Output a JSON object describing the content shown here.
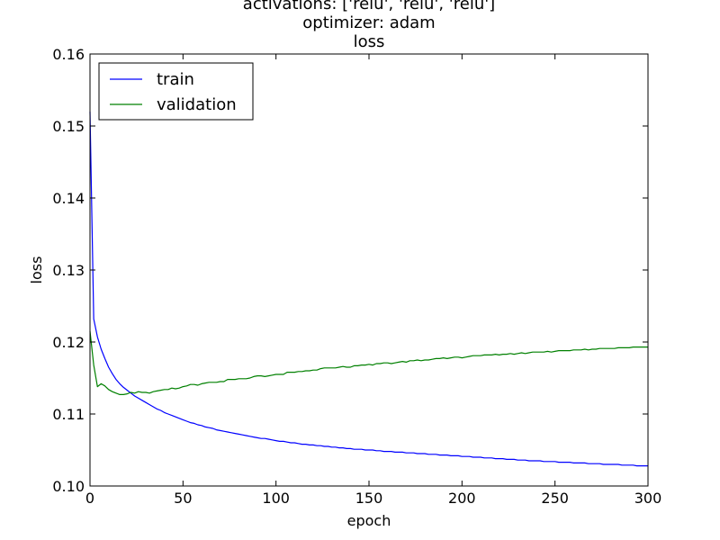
{
  "chart_data": {
    "type": "line",
    "title_lines": [
      "activations: ['relu', 'relu', 'relu']",
      "optimizer: adam",
      "loss"
    ],
    "xlabel": "epoch",
    "ylabel": "loss",
    "xlim": [
      0,
      300
    ],
    "ylim": [
      0.1,
      0.16
    ],
    "x_ticks": [
      "0",
      "50",
      "100",
      "150",
      "200",
      "250",
      "300"
    ],
    "y_ticks": [
      "0.10",
      "0.11",
      "0.12",
      "0.13",
      "0.14",
      "0.15",
      "0.16"
    ],
    "grid": false,
    "legend_position": "top-left",
    "x_step": 2,
    "series": [
      {
        "name": "train",
        "color": "#0000ff",
        "values": [
          0.152,
          0.1232,
          0.1207,
          0.119,
          0.1177,
          0.1165,
          0.1156,
          0.1148,
          0.1142,
          0.1137,
          0.1133,
          0.1129,
          0.1125,
          0.1122,
          0.1119,
          0.1116,
          0.1113,
          0.111,
          0.1107,
          0.1105,
          0.1102,
          0.11,
          0.1098,
          0.1096,
          0.1094,
          0.1092,
          0.109,
          0.1088,
          0.1087,
          0.1085,
          0.1084,
          0.1082,
          0.1081,
          0.108,
          0.1078,
          0.1077,
          0.1076,
          0.1075,
          0.1074,
          0.1073,
          0.1072,
          0.1071,
          0.107,
          0.1069,
          0.1068,
          0.1067,
          0.1066,
          0.1066,
          0.1065,
          0.1064,
          0.1063,
          0.1062,
          0.1062,
          0.1061,
          0.106,
          0.106,
          0.1059,
          0.1058,
          0.1058,
          0.1057,
          0.1057,
          0.1056,
          0.1056,
          0.1055,
          0.1055,
          0.1054,
          0.1054,
          0.1053,
          0.1053,
          0.1052,
          0.1052,
          0.1051,
          0.1051,
          0.1051,
          0.105,
          0.105,
          0.105,
          0.1049,
          0.1049,
          0.1048,
          0.1048,
          0.1048,
          0.1047,
          0.1047,
          0.1047,
          0.1046,
          0.1046,
          0.1046,
          0.1045,
          0.1045,
          0.1045,
          0.1044,
          0.1044,
          0.1044,
          0.1043,
          0.1043,
          0.1043,
          0.1042,
          0.1042,
          0.1042,
          0.1041,
          0.1041,
          0.1041,
          0.104,
          0.104,
          0.104,
          0.1039,
          0.1039,
          0.1039,
          0.1038,
          0.1038,
          0.1038,
          0.1037,
          0.1037,
          0.1037,
          0.1036,
          0.1036,
          0.1036,
          0.1035,
          0.1035,
          0.1035,
          0.1035,
          0.1034,
          0.1034,
          0.1034,
          0.1034,
          0.1033,
          0.1033,
          0.1033,
          0.1033,
          0.1032,
          0.1032,
          0.1032,
          0.1032,
          0.1031,
          0.1031,
          0.1031,
          0.1031,
          0.103,
          0.103,
          0.103,
          0.103,
          0.103,
          0.1029,
          0.1029,
          0.1029,
          0.1029,
          0.1028,
          0.1028,
          0.1028,
          0.1028
        ]
      },
      {
        "name": "validation",
        "color": "#008000",
        "values": [
          0.1215,
          0.1168,
          0.1138,
          0.1142,
          0.1139,
          0.1134,
          0.1131,
          0.1129,
          0.1127,
          0.1127,
          0.1128,
          0.113,
          0.1129,
          0.1131,
          0.113,
          0.113,
          0.1129,
          0.1131,
          0.1132,
          0.1133,
          0.1134,
          0.1134,
          0.1136,
          0.1135,
          0.1136,
          0.1138,
          0.1139,
          0.1141,
          0.1141,
          0.114,
          0.1142,
          0.1143,
          0.1144,
          0.1144,
          0.1144,
          0.1145,
          0.1145,
          0.1148,
          0.1148,
          0.1148,
          0.1149,
          0.1149,
          0.1149,
          0.115,
          0.1152,
          0.1153,
          0.1153,
          0.1152,
          0.1153,
          0.1154,
          0.1155,
          0.1155,
          0.1155,
          0.1158,
          0.1158,
          0.1158,
          0.1159,
          0.1159,
          0.116,
          0.116,
          0.1161,
          0.1161,
          0.1163,
          0.1164,
          0.1164,
          0.1164,
          0.1164,
          0.1165,
          0.1166,
          0.1165,
          0.1165,
          0.1167,
          0.1167,
          0.1168,
          0.1168,
          0.1169,
          0.1168,
          0.117,
          0.117,
          0.1171,
          0.1171,
          0.117,
          0.1171,
          0.1172,
          0.1173,
          0.1172,
          0.1174,
          0.1174,
          0.1175,
          0.1174,
          0.1175,
          0.1175,
          0.1176,
          0.1177,
          0.1177,
          0.1178,
          0.1177,
          0.1178,
          0.1179,
          0.1179,
          0.1178,
          0.1179,
          0.118,
          0.1181,
          0.1181,
          0.1181,
          0.1182,
          0.1182,
          0.1182,
          0.1183,
          0.1182,
          0.1183,
          0.1183,
          0.1184,
          0.1183,
          0.1184,
          0.1185,
          0.1184,
          0.1185,
          0.1186,
          0.1186,
          0.1186,
          0.1186,
          0.1187,
          0.1186,
          0.1187,
          0.1188,
          0.1188,
          0.1188,
          0.1188,
          0.1189,
          0.1189,
          0.1189,
          0.119,
          0.1189,
          0.119,
          0.119,
          0.1191,
          0.1191,
          0.1191,
          0.1191,
          0.1191,
          0.1192,
          0.1192,
          0.1192,
          0.1192,
          0.1193,
          0.1193,
          0.1193,
          0.1193,
          0.1193
        ]
      }
    ]
  }
}
